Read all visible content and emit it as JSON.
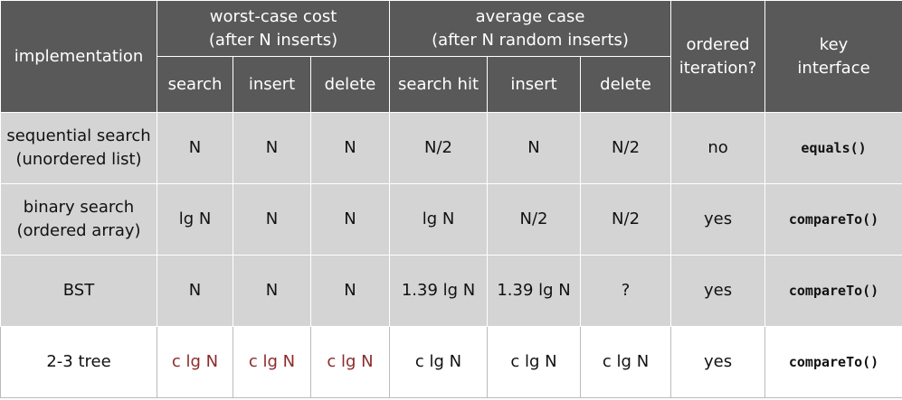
{
  "header": {
    "implementation": "implementation",
    "groups": [
      {
        "title": [
          "worst-case cost",
          "(after N inserts)"
        ],
        "columns": [
          "search",
          "insert",
          "delete"
        ]
      },
      {
        "title": [
          "average case",
          "(after N random inserts)"
        ],
        "columns": [
          "search hit",
          "insert",
          "delete"
        ]
      }
    ],
    "ordered": [
      "ordered",
      "iteration?"
    ],
    "key": [
      "key",
      "interface"
    ]
  },
  "rows": [
    {
      "name": [
        "sequential search",
        "(unordered list)"
      ],
      "cells": [
        "N",
        "N",
        "N",
        "N/2",
        "N",
        "N/2",
        "no",
        "equals()"
      ]
    },
    {
      "name": [
        "binary search",
        "(ordered array)"
      ],
      "cells": [
        "lg N",
        "N",
        "N",
        "lg N",
        "N/2",
        "N/2",
        "yes",
        "compareTo()"
      ]
    },
    {
      "name": [
        "BST"
      ],
      "cells": [
        "N",
        "N",
        "N",
        "1.39 lg N",
        "1.39 lg N",
        "?",
        "yes",
        "compareTo()"
      ]
    },
    {
      "name": [
        "2-3 tree"
      ],
      "cells": [
        "c lg N",
        "c lg N",
        "c lg N",
        "c lg N",
        "c lg N",
        "c lg N",
        "yes",
        "compareTo()"
      ]
    }
  ]
}
